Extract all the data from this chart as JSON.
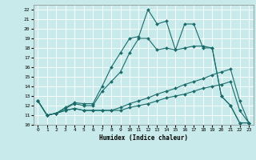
{
  "title": "",
  "xlabel": "Humidex (Indice chaleur)",
  "xlim": [
    -0.5,
    23.5
  ],
  "ylim": [
    10,
    22.5
  ],
  "xticks": [
    0,
    1,
    2,
    3,
    4,
    5,
    6,
    7,
    8,
    9,
    10,
    11,
    12,
    13,
    14,
    15,
    16,
    17,
    18,
    19,
    20,
    21,
    22,
    23
  ],
  "yticks": [
    10,
    11,
    12,
    13,
    14,
    15,
    16,
    17,
    18,
    19,
    20,
    21,
    22
  ],
  "bg_color": "#c9eaea",
  "line_color": "#1a6b6b",
  "grid_color": "#ffffff",
  "lines": [
    {
      "x": [
        0,
        1,
        2,
        3,
        4,
        5,
        6,
        7,
        8,
        9,
        10,
        11,
        12,
        13,
        14,
        15,
        16,
        17,
        18,
        19,
        20,
        21,
        22,
        23
      ],
      "y": [
        12.5,
        11.0,
        11.2,
        11.5,
        11.7,
        11.5,
        11.5,
        11.5,
        11.5,
        11.5,
        11.8,
        12.0,
        12.2,
        12.5,
        12.8,
        13.0,
        13.2,
        13.5,
        13.8,
        14.0,
        14.2,
        14.5,
        11.5,
        10.2
      ]
    },
    {
      "x": [
        0,
        1,
        2,
        3,
        4,
        5,
        6,
        7,
        8,
        9,
        10,
        11,
        12,
        13,
        14,
        15,
        16,
        17,
        18,
        19,
        20,
        21,
        22,
        23
      ],
      "y": [
        12.5,
        11.0,
        11.2,
        11.5,
        11.7,
        11.5,
        11.5,
        11.5,
        11.5,
        11.8,
        12.2,
        12.5,
        12.8,
        13.2,
        13.5,
        13.8,
        14.2,
        14.5,
        14.8,
        15.2,
        15.5,
        15.8,
        12.5,
        10.2
      ]
    },
    {
      "x": [
        0,
        1,
        2,
        3,
        4,
        5,
        6,
        7,
        8,
        9,
        10,
        11,
        12,
        13,
        14,
        15,
        16,
        17,
        18,
        19,
        20,
        21,
        22,
        23
      ],
      "y": [
        12.5,
        11.0,
        11.2,
        11.7,
        12.2,
        12.0,
        12.0,
        13.5,
        14.5,
        15.5,
        17.5,
        19.0,
        19.0,
        17.8,
        18.0,
        17.8,
        18.0,
        18.2,
        18.2,
        18.0,
        13.0,
        12.0,
        10.2,
        10.2
      ]
    },
    {
      "x": [
        0,
        1,
        2,
        3,
        4,
        5,
        6,
        7,
        8,
        9,
        10,
        11,
        12,
        13,
        14,
        15,
        16,
        17,
        18,
        19,
        20,
        21,
        22,
        23
      ],
      "y": [
        12.5,
        11.0,
        11.2,
        11.8,
        12.3,
        12.2,
        12.2,
        14.0,
        16.0,
        17.5,
        19.0,
        19.2,
        22.0,
        20.5,
        20.8,
        17.8,
        20.5,
        20.5,
        18.0,
        18.0,
        13.0,
        12.0,
        10.2,
        10.2
      ]
    }
  ]
}
